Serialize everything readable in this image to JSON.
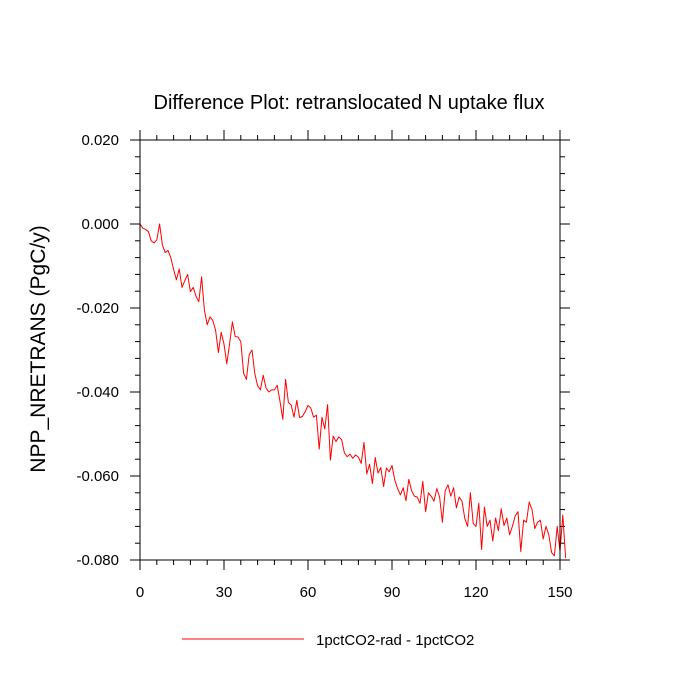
{
  "chart_data": {
    "type": "line",
    "title": "Difference Plot: retranslocated N uptake flux",
    "ylabel": "NPP_NRETRANS  (PgC/y)",
    "xlabel": "",
    "xlim": [
      0,
      150
    ],
    "ylim": [
      -0.08,
      0.02
    ],
    "x_ticks": [
      0,
      30,
      60,
      90,
      120,
      150
    ],
    "x_tick_labels": [
      "0",
      "30",
      "60",
      "90",
      "120",
      "150"
    ],
    "x_minor_step": 6,
    "y_ticks": [
      0.02,
      0.0,
      -0.02,
      -0.04,
      -0.06,
      -0.08
    ],
    "y_tick_labels": [
      "0.020",
      "0.000",
      "-0.020",
      "-0.040",
      "-0.060",
      "-0.080"
    ],
    "y_minor_step": 0.004,
    "grid": false,
    "legend_placement": "bottom",
    "series": [
      {
        "name": "1pctCO2-rad - 1pctCO2",
        "color": "#ff0000",
        "x_start": 0,
        "x_step": 1,
        "values": [
          0.0,
          -0.001,
          -0.0013,
          -0.0018,
          -0.004,
          -0.0045,
          -0.0038,
          0.0,
          -0.005,
          -0.0068,
          -0.0063,
          -0.008,
          -0.0108,
          -0.0133,
          -0.0107,
          -0.0151,
          -0.0135,
          -0.012,
          -0.0161,
          -0.0151,
          -0.0172,
          -0.0185,
          -0.0126,
          -0.0205,
          -0.024,
          -0.0221,
          -0.023,
          -0.0253,
          -0.0306,
          -0.0258,
          -0.0286,
          -0.0333,
          -0.0285,
          -0.0233,
          -0.0268,
          -0.0269,
          -0.028,
          -0.0355,
          -0.037,
          -0.0311,
          -0.03,
          -0.0356,
          -0.0385,
          -0.0395,
          -0.036,
          -0.039,
          -0.04,
          -0.0395,
          -0.0395,
          -0.0384,
          -0.0422,
          -0.0465,
          -0.037,
          -0.0425,
          -0.0431,
          -0.046,
          -0.042,
          -0.0461,
          -0.0458,
          -0.0447,
          -0.0432,
          -0.0438,
          -0.046,
          -0.0455,
          -0.0536,
          -0.046,
          -0.0488,
          -0.043,
          -0.0562,
          -0.0505,
          -0.0518,
          -0.0507,
          -0.0513,
          -0.0545,
          -0.0554,
          -0.0548,
          -0.0558,
          -0.055,
          -0.0555,
          -0.057,
          -0.052,
          -0.0595,
          -0.0572,
          -0.0618,
          -0.0556,
          -0.0593,
          -0.058,
          -0.0625,
          -0.0581,
          -0.059,
          -0.0575,
          -0.061,
          -0.063,
          -0.0645,
          -0.0628,
          -0.0659,
          -0.0608,
          -0.0635,
          -0.0648,
          -0.065,
          -0.0665,
          -0.0613,
          -0.0685,
          -0.064,
          -0.0648,
          -0.066,
          -0.063,
          -0.065,
          -0.071,
          -0.0635,
          -0.0621,
          -0.0648,
          -0.0628,
          -0.0676,
          -0.065,
          -0.066,
          -0.0701,
          -0.072,
          -0.064,
          -0.0713,
          -0.072,
          -0.0665,
          -0.0775,
          -0.0674,
          -0.072,
          -0.0705,
          -0.0755,
          -0.07,
          -0.073,
          -0.0678,
          -0.0718,
          -0.07,
          -0.074,
          -0.072,
          -0.0695,
          -0.0685,
          -0.078,
          -0.0705,
          -0.071,
          -0.0662,
          -0.068,
          -0.0725,
          -0.071,
          -0.0705,
          -0.075,
          -0.072,
          -0.074,
          -0.0782,
          -0.079,
          -0.072,
          -0.078,
          -0.0693,
          -0.0795
        ]
      }
    ]
  }
}
